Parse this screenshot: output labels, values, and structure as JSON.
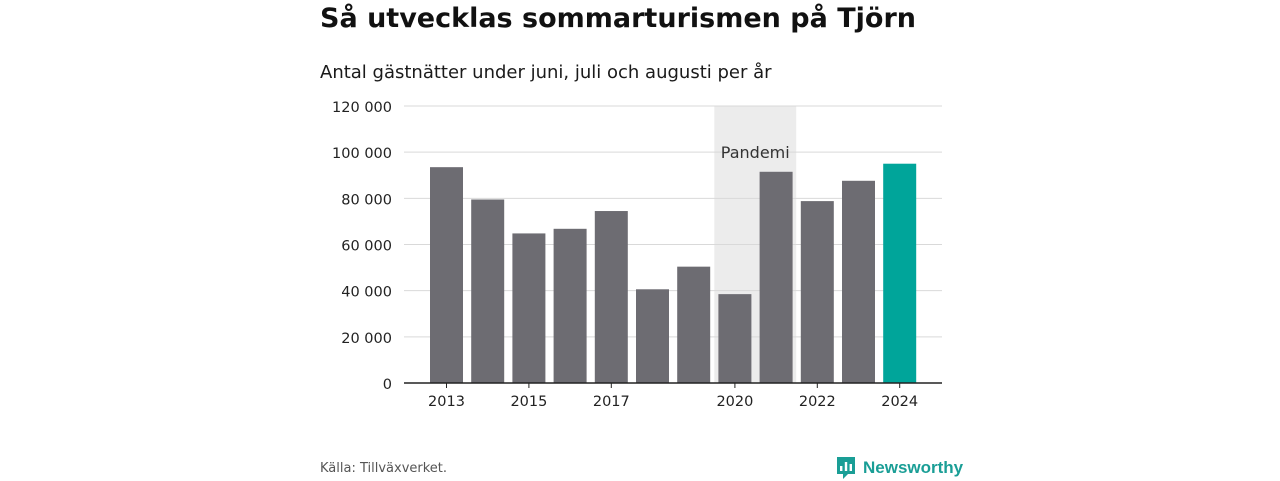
{
  "chart_data": {
    "type": "bar",
    "title": "Så utvecklas sommarturismen på Tjörn",
    "subtitle": "Antal gästnätter under juni, juli och augusti per år",
    "categories": [
      "2013",
      "2014",
      "2015",
      "2016",
      "2017",
      "2018",
      "2019",
      "2020",
      "2021",
      "2022",
      "2023",
      "2024"
    ],
    "x_tick_labels": [
      "2013",
      "",
      "2015",
      "",
      "2017",
      "",
      "",
      "2020",
      "",
      "2022",
      "",
      "2024"
    ],
    "values": [
      93500,
      79500,
      64800,
      66800,
      74500,
      40600,
      50400,
      38500,
      91500,
      78800,
      87600,
      95000
    ],
    "ylim": [
      0,
      120000
    ],
    "yticks": [
      0,
      20000,
      40000,
      60000,
      80000,
      100000,
      120000
    ],
    "ytick_labels": [
      "0",
      "20 000",
      "40 000",
      "60 000",
      "80 000",
      "100 000",
      "120 000"
    ],
    "xlabel": "",
    "ylabel": "",
    "grid": true,
    "highlight_category": "2024",
    "annotation": {
      "label": "Pandemi",
      "from": "2020",
      "to": "2021"
    },
    "colors": {
      "bar": "#6d6c72",
      "highlight": "#00a59a",
      "shade": "#ececec",
      "grid": "#d9d9d9",
      "axis": "#222222"
    }
  },
  "footer": {
    "source": "Källa: Tillväxverket.",
    "brand": "Newsworthy",
    "brand_icon": "newsworthy-logo-icon"
  }
}
